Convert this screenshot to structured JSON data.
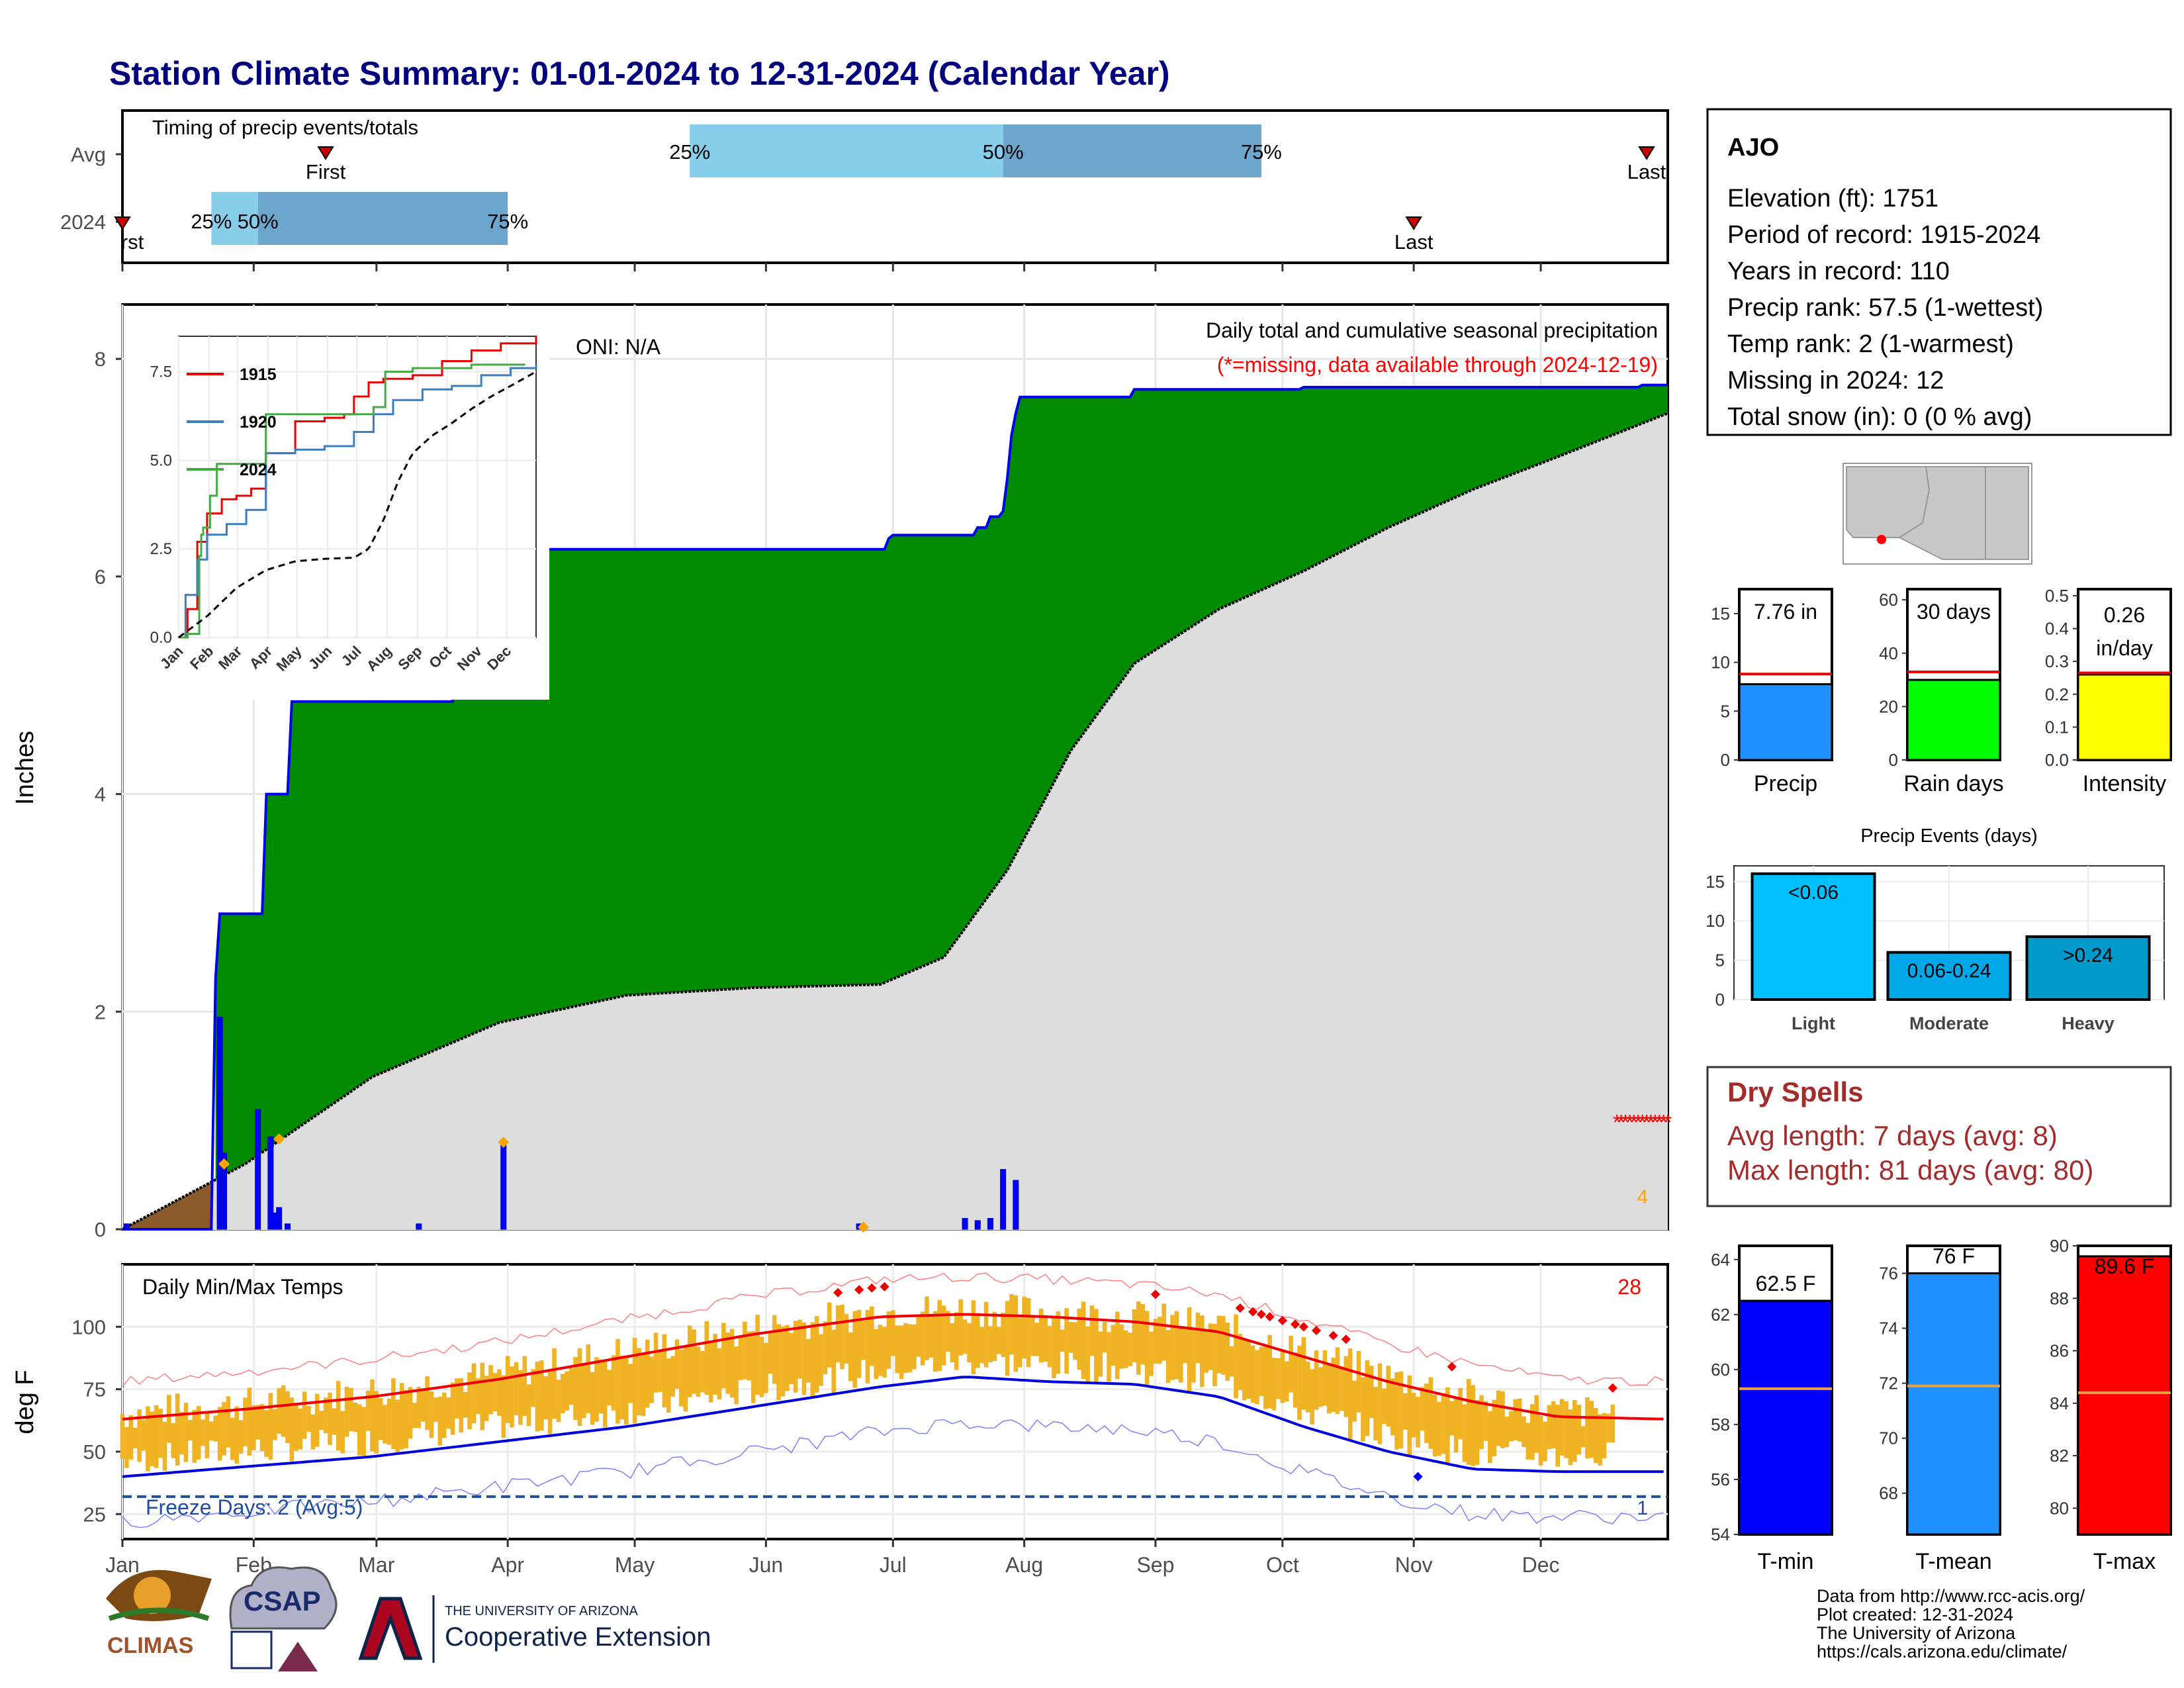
{
  "title": "Station Climate Summary: 01-01-2024 to 12-31-2024 (Calendar Year)",
  "months": [
    "Jan",
    "Feb",
    "Mar",
    "Apr",
    "May",
    "Jun",
    "Jul",
    "Aug",
    "Sep",
    "Oct",
    "Nov",
    "Dec"
  ],
  "timing": {
    "title": "Timing of precip events/totals",
    "row_labels": [
      "Avg",
      "2024"
    ],
    "pct_labels": [
      "25%",
      "50%",
      "75%"
    ],
    "first_label": "First",
    "last_label": "Last",
    "first_label_2024": "rst"
  },
  "precip": {
    "ylabel": "Inches",
    "oni": "ONI: N/A",
    "legend_title": "Daily total and cumulative seasonal precipitation",
    "missing_note": "(*=missing, data available through 2024-12-19)",
    "corner_count": "4"
  },
  "inset": {
    "series_names": [
      "1915",
      "1920",
      "2024"
    ],
    "ytick_labels": [
      "0.0",
      "2.5",
      "5.0",
      "7.5"
    ]
  },
  "station": {
    "name": "AJO",
    "lines": [
      "Elevation (ft): 1751",
      "Period of record: 1915-2024",
      "Years in record: 110",
      "Precip rank: 57.5 (1-wettest)",
      "Temp rank: 2 (1-warmest)",
      "Missing in 2024: 12",
      "Total snow (in): 0 (0 % avg)"
    ]
  },
  "mini_bars": [
    {
      "label": "Precip",
      "value_text": "7.76 in",
      "value": 7.76,
      "avg": 8.8,
      "ymax": 17.5,
      "ticks": [
        0,
        5,
        10,
        15
      ],
      "color": "#1e90ff"
    },
    {
      "label": "Rain days",
      "value_text": "30 days",
      "value": 30,
      "avg": 33,
      "ymax": 64,
      "ticks": [
        0,
        20,
        40,
        60
      ],
      "color": "#00ff00"
    },
    {
      "label": "Intensity",
      "value_text": "0.26 in/day",
      "value_line1": "0.26",
      "value_line2": "in/day",
      "value": 0.26,
      "avg": 0.265,
      "ymax": 0.52,
      "ticks": [
        0.0,
        0.1,
        0.2,
        0.3,
        0.4,
        0.5
      ],
      "color": "#ffff00"
    }
  ],
  "events": {
    "title": "Precip Events (days)",
    "categories": [
      "Light",
      "Moderate",
      "Heavy"
    ],
    "bar_labels": [
      "<0.06",
      "0.06-0.24",
      ">0.24"
    ],
    "values": [
      16,
      6,
      8
    ],
    "ticks": [
      0,
      5,
      10,
      15
    ],
    "colors": [
      "#00bfff",
      "#00a8e8",
      "#0099cc"
    ]
  },
  "dry_spells": {
    "title": "Dry Spells",
    "lines": [
      "Avg length: 7 days (avg: 8)",
      "Max length: 81 days (avg: 80)"
    ]
  },
  "temps": {
    "ylabel": "deg F",
    "title": "Daily Min/Max Temps",
    "corner_count": "28",
    "freeze_text": "Freeze Days: 2 (Avg:5)",
    "freeze_count": "1",
    "yticks": [
      25,
      50,
      75,
      100
    ]
  },
  "tbars": [
    {
      "label": "T-min",
      "value_text": "62.5 F",
      "value": 62.5,
      "avg": 59.3,
      "ymin": 54,
      "ymax": 64.5,
      "ticks": [
        54,
        56,
        58,
        60,
        62,
        64
      ],
      "color": "#0000ff"
    },
    {
      "label": "T-mean",
      "value_text": "76 F",
      "value": 76,
      "avg": 71.9,
      "ymin": 66.5,
      "ymax": 77,
      "ticks": [
        68,
        70,
        72,
        74,
        76
      ],
      "color": "#1e90ff"
    },
    {
      "label": "T-max",
      "value_text": "89.6 F",
      "value": 89.6,
      "avg": 84.4,
      "ymin": 79,
      "ymax": 90,
      "ticks": [
        80,
        82,
        84,
        86,
        88,
        90
      ],
      "color": "#ff0000"
    }
  ],
  "credits": [
    "Data from http://www.rcc-acis.org/",
    "Plot created: 12-31-2024",
    "The University of Arizona",
    "https://cals.arizona.edu/climate/"
  ],
  "logos": {
    "climas": "CLIMAS",
    "csap": "CSAP",
    "ua_small": "THE UNIVERSITY OF ARIZONA",
    "ua_big": "Cooperative Extension"
  },
  "chart_data": [
    {
      "type": "area",
      "title": "Daily total and cumulative seasonal precipitation",
      "ylabel": "Inches",
      "ylim": [
        0,
        8.5
      ],
      "x_unit": "day of year 2024",
      "cumulative_2024": {
        "x": [
          1,
          22,
          23,
          24,
          26,
          33,
          35,
          39,
          41,
          77,
          80,
          90,
          120,
          176,
          182,
          183,
          200,
          203,
          206,
          209,
          210,
          211,
          212,
          213,
          240,
          280,
          360,
          366
        ],
        "y": [
          0,
          0,
          2.3,
          2.9,
          2.9,
          2.9,
          4.0,
          4.0,
          4.85,
          4.85,
          6.25,
          6.25,
          6.25,
          6.25,
          6.35,
          6.38,
          6.38,
          6.45,
          6.55,
          6.6,
          6.9,
          7.3,
          7.5,
          7.65,
          7.72,
          7.74,
          7.76,
          7.76
        ]
      },
      "cumulative_avg": {
        "x": [
          1,
          30,
          60,
          90,
          120,
          150,
          180,
          195,
          210,
          225,
          240,
          260,
          280,
          300,
          320,
          340,
          366
        ],
        "y": [
          0,
          0.6,
          1.4,
          1.9,
          2.15,
          2.22,
          2.25,
          2.5,
          3.3,
          4.4,
          5.2,
          5.7,
          6.05,
          6.45,
          6.8,
          7.1,
          7.5
        ]
      },
      "daily_bars": {
        "x": [
          2,
          24,
          25,
          33,
          36,
          37,
          38,
          40,
          71,
          91,
          175,
          200,
          203,
          206,
          209,
          212
        ],
        "y": [
          0.05,
          1.95,
          0.7,
          1.1,
          0.85,
          0.15,
          0.2,
          0.05,
          0.05,
          0.8,
          0.05,
          0.1,
          0.08,
          0.1,
          0.55,
          0.45
        ]
      }
    },
    {
      "type": "line",
      "title": "Timing of precip events/totals",
      "series": [
        {
          "name": "Avg",
          "first": "Feb 18",
          "q25": "May 14",
          "q50": "Jul 27",
          "q75": "Sep 26",
          "last": "Dec 26"
        },
        {
          "name": "2024",
          "first": "Jan 1",
          "q25": "Jan 22",
          "q50": "Feb 2",
          "q75": "Apr 1",
          "last": "Nov 1"
        }
      ]
    },
    {
      "type": "line",
      "series_names": [
        "1915",
        "1920",
        "2024"
      ],
      "x_ticks": [
        "Jan",
        "Feb",
        "Mar",
        "Apr",
        "May",
        "Jun",
        "Jul",
        "Aug",
        "Sep",
        "Oct",
        "Nov",
        "Dec"
      ],
      "ylim": [
        0,
        8.5
      ],
      "yticks": [
        0.0,
        2.5,
        5.0,
        7.5
      ]
    },
    {
      "type": "bar",
      "title": "Precip Events (days)",
      "categories": [
        "Light",
        "Moderate",
        "Heavy"
      ],
      "values": [
        16,
        6,
        8
      ]
    },
    {
      "type": "line",
      "title": "Daily Min/Max Temps",
      "ylabel": "deg F",
      "ylim": [
        15,
        125
      ],
      "avg_max": {
        "x": [
          1,
          30,
          60,
          90,
          120,
          150,
          180,
          200,
          220,
          240,
          260,
          280,
          300,
          320,
          340,
          366
        ],
        "y": [
          63,
          67,
          72,
          79,
          88,
          97,
          104,
          105,
          104,
          102,
          98,
          88,
          78,
          70,
          64,
          63
        ]
      },
      "avg_min": {
        "x": [
          1,
          30,
          60,
          90,
          120,
          150,
          180,
          200,
          220,
          240,
          260,
          280,
          300,
          320,
          340,
          366
        ],
        "y": [
          40,
          44,
          48,
          54,
          60,
          68,
          76,
          80,
          78,
          77,
          72,
          60,
          50,
          43,
          42,
          42
        ]
      }
    },
    {
      "type": "bar",
      "categories": [
        "T-min",
        "T-mean",
        "T-max"
      ],
      "values": [
        62.5,
        76,
        89.6
      ]
    }
  ]
}
